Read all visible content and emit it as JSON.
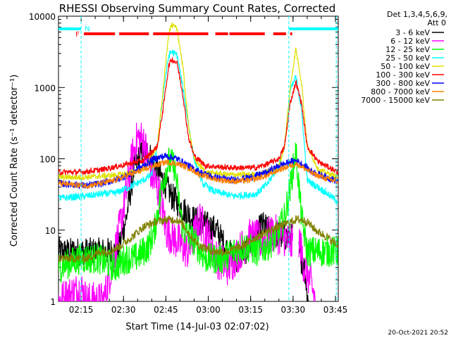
{
  "chart_data": {
    "type": "line",
    "title": "RHESSI Observing Summary Count Rates, Corrected",
    "xlabel": "Start Time (14-Jul-03 02:07:02)",
    "ylabel": "Corrected Count Rate (s⁻¹ detector⁻¹)",
    "y_scale": "log",
    "ylim": [
      1,
      10000
    ],
    "xlim_minutes": [
      0,
      99
    ],
    "x_ticks": [
      {
        "t": 8,
        "label": "02:15"
      },
      {
        "t": 23,
        "label": "02:30"
      },
      {
        "t": 38,
        "label": "02:45"
      },
      {
        "t": 53,
        "label": "03:00"
      },
      {
        "t": 68,
        "label": "03:15"
      },
      {
        "t": 83,
        "label": "03:30"
      },
      {
        "t": 98,
        "label": "03:45"
      }
    ],
    "y_ticks": [
      {
        "v": 1,
        "label": "1"
      },
      {
        "v": 10,
        "label": "10"
      },
      {
        "v": 100,
        "label": "100"
      },
      {
        "v": 1000,
        "label": "1000"
      },
      {
        "v": 10000,
        "label": "10000"
      }
    ],
    "legend_header": [
      "Det 1,3,4,5,6,9,",
      "Att 0"
    ],
    "corner_date": "20-Oct-2021 20:52",
    "markers": {
      "night_label": "N",
      "flare_label": "F",
      "night_edges_t": [
        8,
        81.5,
        98.3
      ]
    },
    "flags": {
      "night": [
        [
          0,
          8
        ],
        [
          81.5,
          99
        ]
      ],
      "flare": [
        [
          9,
          20
        ],
        [
          21.5,
          32
        ],
        [
          33.5,
          53
        ],
        [
          55.5,
          60
        ],
        [
          60.5,
          73
        ],
        [
          76,
          80.5
        ],
        [
          82,
          82.7
        ]
      ]
    },
    "series": [
      {
        "name": "3 - 6 keV",
        "color": "#000000",
        "base": 5,
        "noise": 0.2,
        "gaps": [
          [
            83,
            85
          ],
          [
            88.5,
            99
          ]
        ],
        "keys": [
          [
            0,
            5
          ],
          [
            16,
            5
          ],
          [
            21,
            5
          ],
          [
            24,
            15
          ],
          [
            27,
            80
          ],
          [
            30,
            130
          ],
          [
            32,
            120
          ],
          [
            34,
            80
          ],
          [
            37,
            50
          ],
          [
            40,
            30
          ],
          [
            44,
            20
          ],
          [
            48,
            14
          ],
          [
            52,
            12
          ],
          [
            56,
            10
          ],
          [
            60,
            5
          ],
          [
            63,
            4
          ],
          [
            66,
            5
          ],
          [
            69,
            7
          ],
          [
            72,
            12
          ],
          [
            76,
            9
          ],
          [
            80,
            8
          ],
          [
            83,
            8
          ],
          [
            85,
            5
          ],
          [
            87,
            3
          ],
          [
            88.5,
            1
          ]
        ]
      },
      {
        "name": "6 - 12 keV",
        "color": "#ff00ff",
        "base": 1,
        "noise": 0.28,
        "gaps": [
          [
            83,
            85
          ],
          [
            91,
            99
          ]
        ],
        "keys": [
          [
            0,
            1
          ],
          [
            8,
            1.5
          ],
          [
            10,
            1
          ],
          [
            16,
            1
          ],
          [
            20,
            5
          ],
          [
            23,
            20
          ],
          [
            26,
            100
          ],
          [
            28,
            200
          ],
          [
            30,
            180
          ],
          [
            33,
            60
          ],
          [
            36,
            30
          ],
          [
            38,
            10
          ],
          [
            42,
            7
          ],
          [
            46,
            5
          ],
          [
            50,
            14
          ],
          [
            53,
            8
          ],
          [
            56,
            4
          ],
          [
            60,
            3
          ],
          [
            64,
            5
          ],
          [
            68,
            8
          ],
          [
            72,
            7
          ],
          [
            76,
            9
          ],
          [
            80,
            8
          ],
          [
            82,
            6
          ],
          [
            85,
            8
          ],
          [
            87,
            3
          ],
          [
            89,
            2
          ],
          [
            91,
            1
          ]
        ]
      },
      {
        "name": "12 - 25 keV",
        "color": "#00ff00",
        "base": 3,
        "noise": 0.22,
        "gaps": [],
        "keys": [
          [
            0,
            3
          ],
          [
            8,
            4
          ],
          [
            14,
            4
          ],
          [
            20,
            3
          ],
          [
            24,
            4
          ],
          [
            27,
            4
          ],
          [
            30,
            5
          ],
          [
            32,
            6
          ],
          [
            34,
            10
          ],
          [
            37,
            50
          ],
          [
            39,
            90
          ],
          [
            41,
            80
          ],
          [
            44,
            10
          ],
          [
            48,
            7
          ],
          [
            52,
            4
          ],
          [
            58,
            4
          ],
          [
            62,
            5
          ],
          [
            66,
            6
          ],
          [
            70,
            5
          ],
          [
            74,
            6
          ],
          [
            77,
            8
          ],
          [
            80,
            15
          ],
          [
            82,
            40
          ],
          [
            84,
            130
          ],
          [
            86,
            15
          ],
          [
            88,
            5
          ],
          [
            99,
            5
          ]
        ]
      },
      {
        "name": "25 - 50 keV",
        "color": "#00ffff",
        "base": 28,
        "noise": 0.05,
        "gaps": [],
        "keys": [
          [
            0,
            28
          ],
          [
            10,
            30
          ],
          [
            15,
            32
          ],
          [
            20,
            33
          ],
          [
            25,
            40
          ],
          [
            30,
            50
          ],
          [
            33,
            60
          ],
          [
            35,
            150
          ],
          [
            37,
            800
          ],
          [
            39,
            2800
          ],
          [
            40,
            3200
          ],
          [
            42,
            2800
          ],
          [
            44,
            1000
          ],
          [
            46,
            300
          ],
          [
            48,
            100
          ],
          [
            51,
            45
          ],
          [
            55,
            35
          ],
          [
            62,
            30
          ],
          [
            70,
            32
          ],
          [
            74,
            45
          ],
          [
            78,
            80
          ],
          [
            80,
            150
          ],
          [
            82,
            900
          ],
          [
            84,
            1400
          ],
          [
            86,
            500
          ],
          [
            88,
            50
          ],
          [
            94,
            35
          ],
          [
            99,
            25
          ]
        ]
      },
      {
        "name": "50 - 100 keV",
        "color": "#e0e000",
        "base": 55,
        "noise": 0.04,
        "gaps": [],
        "keys": [
          [
            0,
            55
          ],
          [
            8,
            55
          ],
          [
            15,
            57
          ],
          [
            22,
            60
          ],
          [
            30,
            70
          ],
          [
            35,
            150
          ],
          [
            37,
            900
          ],
          [
            39,
            6000
          ],
          [
            40,
            7500
          ],
          [
            42,
            6500
          ],
          [
            44,
            2000
          ],
          [
            46,
            300
          ],
          [
            48,
            100
          ],
          [
            52,
            65
          ],
          [
            60,
            60
          ],
          [
            70,
            60
          ],
          [
            74,
            65
          ],
          [
            78,
            80
          ],
          [
            80,
            150
          ],
          [
            82,
            1000
          ],
          [
            84,
            3500
          ],
          [
            86,
            1200
          ],
          [
            88,
            150
          ],
          [
            92,
            70
          ],
          [
            99,
            55
          ]
        ]
      },
      {
        "name": "100 - 300 keV",
        "color": "#ff0000",
        "base": 65,
        "noise": 0.04,
        "gaps": [],
        "keys": [
          [
            0,
            65
          ],
          [
            8,
            65
          ],
          [
            15,
            70
          ],
          [
            22,
            80
          ],
          [
            30,
            95
          ],
          [
            35,
            150
          ],
          [
            37,
            500
          ],
          [
            39,
            2000
          ],
          [
            40,
            2500
          ],
          [
            42,
            2200
          ],
          [
            44,
            800
          ],
          [
            46,
            200
          ],
          [
            48,
            110
          ],
          [
            52,
            80
          ],
          [
            60,
            75
          ],
          [
            70,
            75
          ],
          [
            74,
            85
          ],
          [
            78,
            100
          ],
          [
            80,
            150
          ],
          [
            82,
            600
          ],
          [
            84,
            1200
          ],
          [
            86,
            600
          ],
          [
            88,
            150
          ],
          [
            92,
            90
          ],
          [
            99,
            65
          ]
        ]
      },
      {
        "name": "300 - 800 keV",
        "color": "#0000ff",
        "base": 45,
        "noise": 0.05,
        "gaps": [],
        "keys": [
          [
            0,
            45
          ],
          [
            10,
            42
          ],
          [
            15,
            45
          ],
          [
            20,
            50
          ],
          [
            25,
            60
          ],
          [
            30,
            80
          ],
          [
            34,
            100
          ],
          [
            38,
            110
          ],
          [
            42,
            100
          ],
          [
            46,
            80
          ],
          [
            50,
            65
          ],
          [
            55,
            55
          ],
          [
            62,
            50
          ],
          [
            68,
            55
          ],
          [
            74,
            65
          ],
          [
            78,
            80
          ],
          [
            82,
            90
          ],
          [
            84,
            95
          ],
          [
            86,
            85
          ],
          [
            90,
            65
          ],
          [
            95,
            55
          ],
          [
            99,
            48
          ]
        ]
      },
      {
        "name": "800 - 7000 keV",
        "color": "#ff8000",
        "base": 45,
        "noise": 0.04,
        "gaps": [],
        "keys": [
          [
            0,
            45
          ],
          [
            10,
            42
          ],
          [
            15,
            45
          ],
          [
            20,
            50
          ],
          [
            25,
            60
          ],
          [
            30,
            70
          ],
          [
            34,
            80
          ],
          [
            38,
            90
          ],
          [
            42,
            85
          ],
          [
            46,
            75
          ],
          [
            50,
            60
          ],
          [
            55,
            52
          ],
          [
            62,
            48
          ],
          [
            68,
            50
          ],
          [
            74,
            58
          ],
          [
            78,
            70
          ],
          [
            82,
            80
          ],
          [
            84,
            85
          ],
          [
            86,
            78
          ],
          [
            90,
            62
          ],
          [
            95,
            52
          ],
          [
            99,
            48
          ]
        ]
      },
      {
        "name": "7000 - 15000 keV",
        "color": "#808000",
        "base": 5,
        "noise": 0.06,
        "gaps": [],
        "keys": [
          [
            0,
            4
          ],
          [
            10,
            4
          ],
          [
            15,
            5
          ],
          [
            18,
            5
          ],
          [
            22,
            6
          ],
          [
            26,
            8
          ],
          [
            30,
            11
          ],
          [
            34,
            13
          ],
          [
            38,
            14
          ],
          [
            42,
            14
          ],
          [
            44,
            12
          ],
          [
            47,
            8
          ],
          [
            50,
            6
          ],
          [
            55,
            5
          ],
          [
            60,
            5
          ],
          [
            65,
            6
          ],
          [
            70,
            8
          ],
          [
            75,
            10
          ],
          [
            80,
            12
          ],
          [
            84,
            14
          ],
          [
            86,
            14
          ],
          [
            88,
            13
          ],
          [
            91,
            10
          ],
          [
            95,
            8
          ],
          [
            99,
            6
          ]
        ]
      }
    ]
  }
}
